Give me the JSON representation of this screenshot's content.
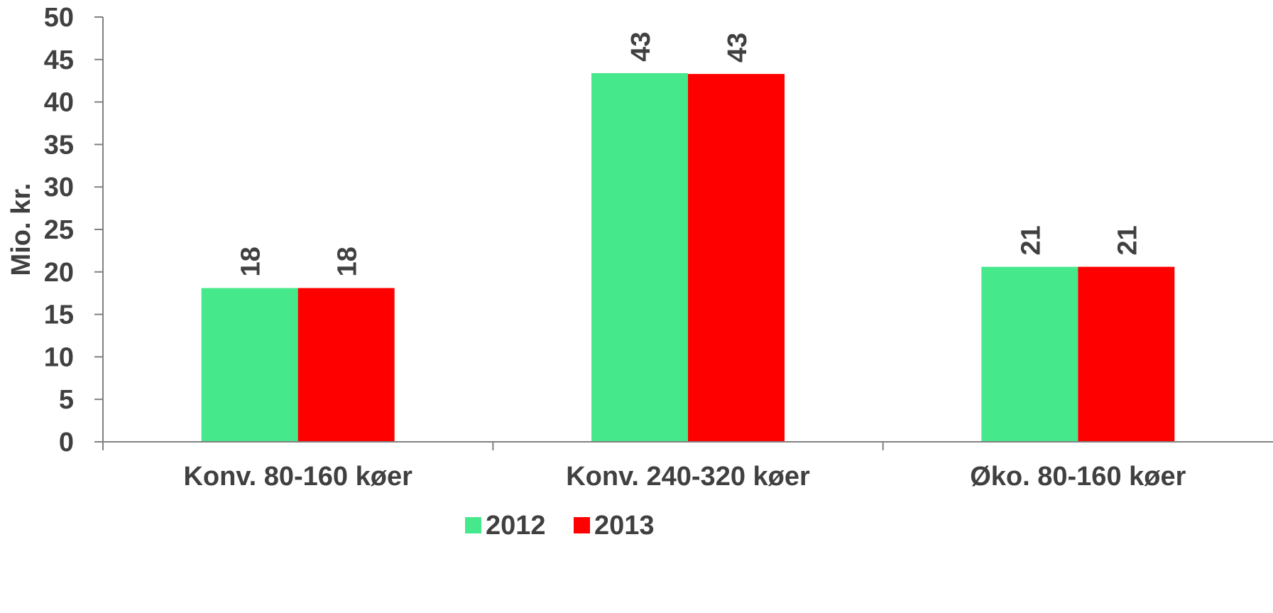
{
  "chart_data": {
    "type": "bar",
    "title": "",
    "xlabel": "",
    "ylabel": "Mio. kr.",
    "ylim": [
      0,
      50
    ],
    "yticks": [
      0,
      5,
      10,
      15,
      20,
      25,
      30,
      35,
      40,
      45,
      50
    ],
    "grid": false,
    "legend_position": "bottom",
    "categories": [
      "Konv. 80-160 køer",
      "Konv. 240-320 køer",
      "Øko. 80-160 køer"
    ],
    "series": [
      {
        "name": "2012",
        "color": "#46e88c",
        "values": [
          18.1,
          43.4,
          20.6
        ],
        "labels": [
          "18",
          "43",
          "21"
        ]
      },
      {
        "name": "2013",
        "color": "#ff0000",
        "values": [
          18.1,
          43.3,
          20.6
        ],
        "labels": [
          "18",
          "43",
          "21"
        ]
      }
    ]
  }
}
